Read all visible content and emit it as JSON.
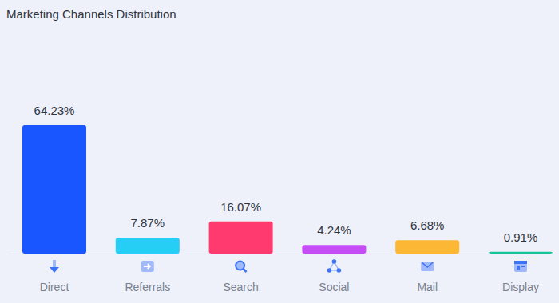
{
  "chart_data": {
    "type": "bar",
    "title": "Marketing Channels Distribution",
    "categories": [
      "Direct",
      "Referrals",
      "Search",
      "Social",
      "Mail",
      "Display"
    ],
    "values": [
      64.23,
      7.87,
      16.07,
      4.24,
      6.68,
      0.91
    ],
    "value_labels": [
      "64.23%",
      "7.87%",
      "16.07%",
      "4.24%",
      "6.68%",
      "0.91%"
    ],
    "colors": [
      "#1a56ff",
      "#26cdf5",
      "#ff3a6e",
      "#c64cf5",
      "#fcb734",
      "#17c49a"
    ],
    "data_labels": true,
    "tick_labels": "x",
    "grid": false
  }
}
